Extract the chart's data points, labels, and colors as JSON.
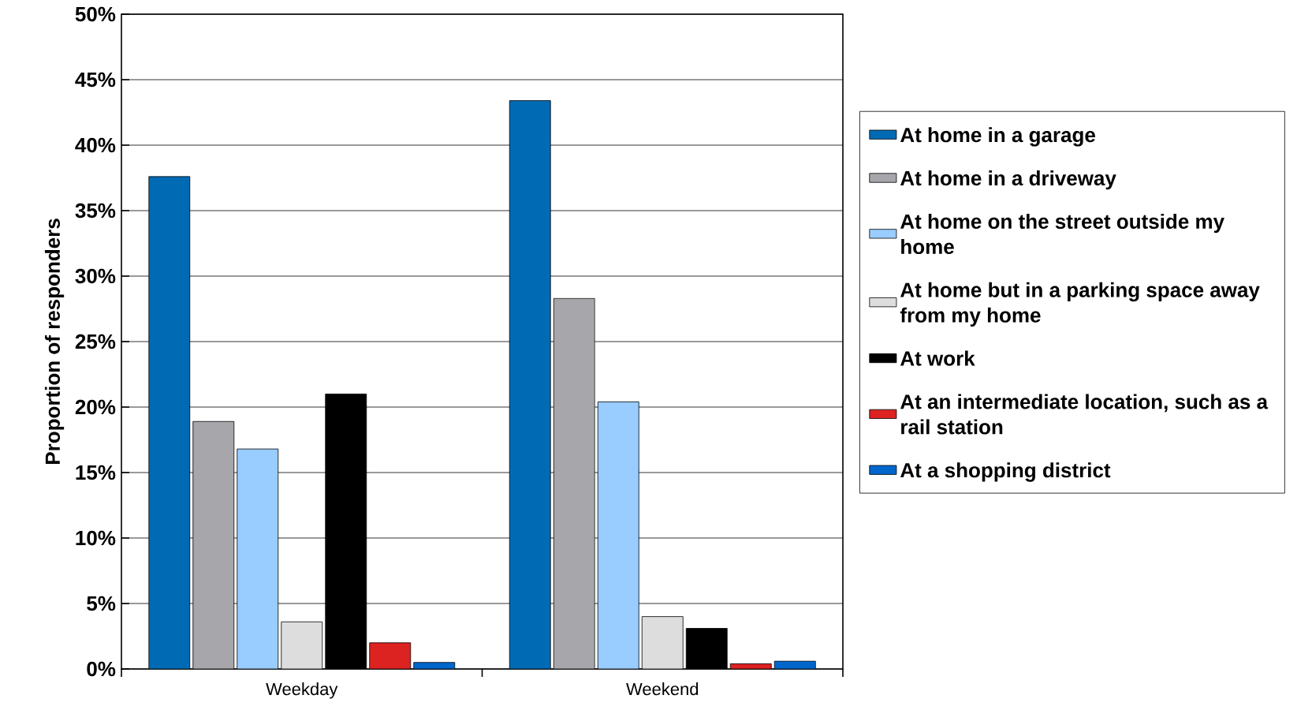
{
  "chart_data": {
    "type": "bar",
    "ylabel": "Proportion of responders",
    "categories": [
      "Weekday",
      "Weekend"
    ],
    "series": [
      {
        "name": "At home in a garage",
        "color": "#006ab4",
        "values": [
          37.6,
          43.4
        ]
      },
      {
        "name": "At home in a driveway",
        "color": "#a6a6ab",
        "values": [
          18.9,
          28.3
        ]
      },
      {
        "name": "At home on the street outside my home",
        "color": "#99ccff",
        "values": [
          16.8,
          20.4
        ]
      },
      {
        "name": "At home but in a parking space away from my home",
        "color": "#dddddd",
        "values": [
          3.6,
          4.0
        ]
      },
      {
        "name": "At work",
        "color": "#000000",
        "values": [
          21.0,
          3.1
        ]
      },
      {
        "name": "At an intermediate location, such as a rail station",
        "color": "#dd2222",
        "values": [
          2.0,
          0.4
        ]
      },
      {
        "name": "At a shopping district",
        "color": "#0066cc",
        "values": [
          0.5,
          0.6
        ]
      }
    ],
    "ylim": [
      0,
      50
    ],
    "yticks": [
      {
        "value": 0,
        "label": "0%"
      },
      {
        "value": 5,
        "label": "5%"
      },
      {
        "value": 10,
        "label": "10%"
      },
      {
        "value": 15,
        "label": "15%"
      },
      {
        "value": 20,
        "label": "20%"
      },
      {
        "value": 25,
        "label": "25%"
      },
      {
        "value": 30,
        "label": "30%"
      },
      {
        "value": 35,
        "label": "35%"
      },
      {
        "value": 40,
        "label": "40%"
      },
      {
        "value": 45,
        "label": "45%"
      },
      {
        "value": 50,
        "label": "50%"
      }
    ],
    "grid": "y",
    "legend": "right"
  }
}
